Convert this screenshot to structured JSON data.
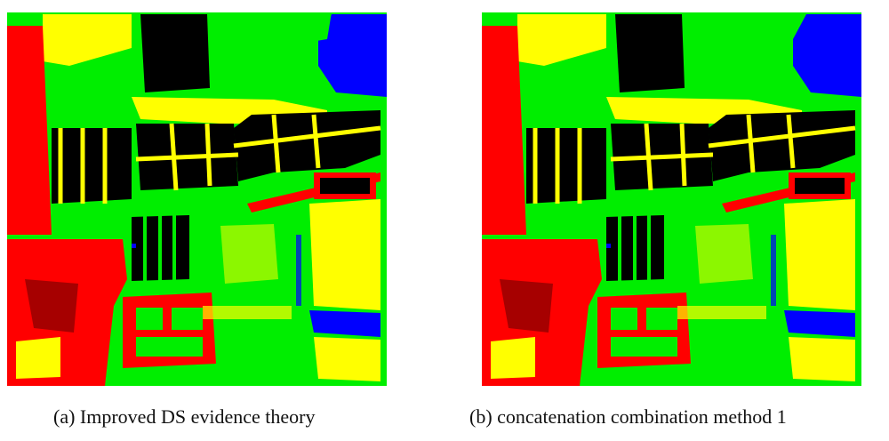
{
  "panels": [
    {
      "id": "a",
      "caption": "(a) Improved DS evidence theory"
    },
    {
      "id": "b",
      "caption": "(b) concatenation combination method 1"
    }
  ],
  "colors": {
    "green": "#00ee00",
    "black": "#000000",
    "red": "#ff0000",
    "yellow": "#ffff00",
    "blue": "#0000ff"
  }
}
